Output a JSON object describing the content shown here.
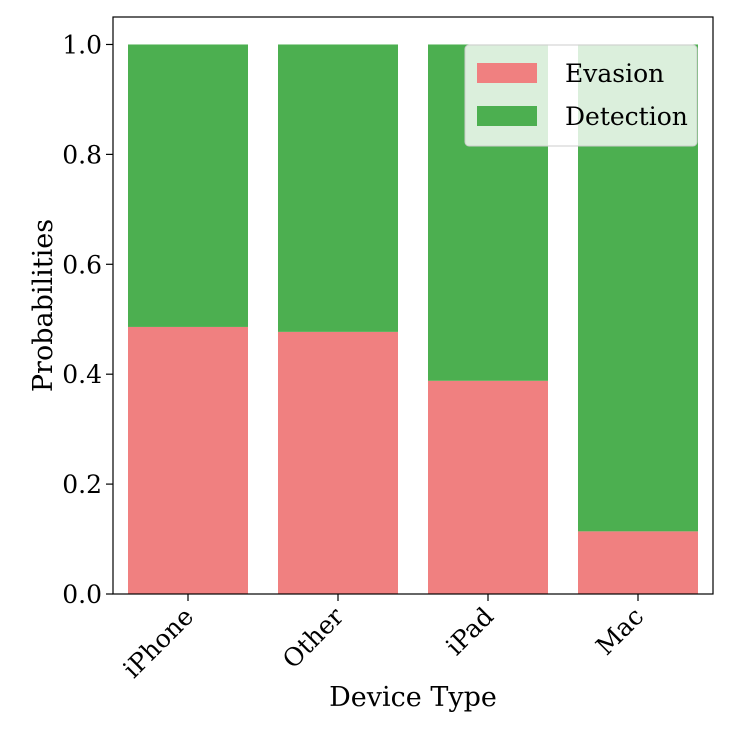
{
  "chart_data": {
    "type": "bar",
    "stacked": true,
    "categories": [
      "iPhone",
      "Other",
      "iPad",
      "Mac"
    ],
    "series": [
      {
        "name": "Evasion",
        "values": [
          0.486,
          0.477,
          0.388,
          0.114
        ],
        "color": "#F08080"
      },
      {
        "name": "Detection",
        "values": [
          0.514,
          0.523,
          0.612,
          0.886
        ],
        "color": "#4CAF50"
      }
    ],
    "xlabel": "Device Type",
    "ylabel": "Probabilities",
    "ylim": [
      0,
      1.05
    ],
    "yticks": [
      "0.0",
      "0.2",
      "0.4",
      "0.6",
      "0.8",
      "1.0"
    ],
    "grid": false,
    "legend_position": "top-right"
  }
}
